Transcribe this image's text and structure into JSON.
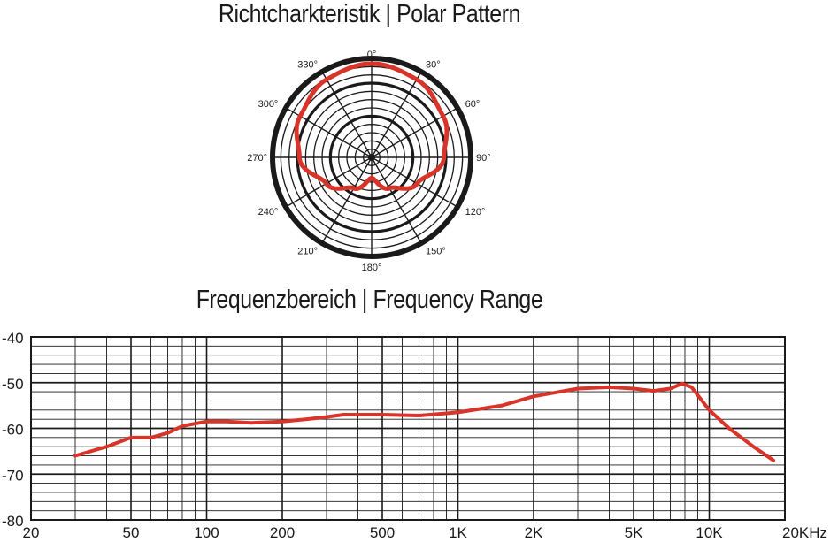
{
  "polar": {
    "title": "Richtcharkteristik | Polar Pattern",
    "angle_labels": [
      "0°",
      "30°",
      "60°",
      "90°",
      "120°",
      "150°",
      "180°",
      "210°",
      "240°",
      "270°",
      "300°",
      "330°"
    ]
  },
  "frequency": {
    "title": "Frequenzbereich | Frequency Range"
  },
  "colors": {
    "curve": "#d8342a",
    "grid": "#1a1a1a"
  },
  "chart_data": [
    {
      "type": "polar",
      "title": "Richtcharkteristik | Polar Pattern",
      "pattern": "cardioid",
      "angles_deg": [
        0,
        30,
        60,
        90,
        120,
        150,
        180,
        210,
        240,
        270,
        300,
        330
      ],
      "angle_labels": [
        "0°",
        "30°",
        "60°",
        "90°",
        "120°",
        "150°",
        "180°",
        "210°",
        "240°",
        "270°",
        "300°",
        "330°"
      ],
      "ring_count": 12,
      "response": [
        {
          "angle": 0,
          "r": 1.0
        },
        {
          "angle": 30,
          "r": 0.96
        },
        {
          "angle": 60,
          "r": 0.88
        },
        {
          "angle": 90,
          "r": 0.77
        },
        {
          "angle": 120,
          "r": 0.56
        },
        {
          "angle": 150,
          "r": 0.38
        },
        {
          "angle": 180,
          "r": 0.22
        },
        {
          "angle": 210,
          "r": 0.38
        },
        {
          "angle": 240,
          "r": 0.56
        },
        {
          "angle": 270,
          "r": 0.77
        },
        {
          "angle": 300,
          "r": 0.88
        },
        {
          "angle": 330,
          "r": 0.96
        }
      ]
    },
    {
      "type": "line",
      "title": "Frequenzbereich | Frequency Range",
      "xscale": "log",
      "xlim": [
        20,
        20000
      ],
      "ylim": [
        -80,
        -40
      ],
      "x_tick_values": [
        20,
        50,
        100,
        200,
        500,
        1000,
        2000,
        5000,
        10000,
        20000
      ],
      "x_tick_labels": [
        "20",
        "50",
        "100",
        "200",
        "500",
        "1K",
        "2K",
        "5K",
        "10K",
        "20KHz"
      ],
      "y_tick_values": [
        -40,
        -50,
        -60,
        -70,
        -80
      ],
      "y_tick_labels": [
        "-40",
        "-50",
        "-60",
        "-70",
        "-80"
      ],
      "grid": true,
      "series": [
        {
          "x": [
            30,
            40,
            50,
            60,
            70,
            80,
            100,
            120,
            150,
            200,
            250,
            300,
            350,
            500,
            700,
            1000,
            1500,
            2000,
            3000,
            4000,
            5000,
            6000,
            7000,
            7800,
            8500,
            10000,
            12000,
            15000,
            18000
          ],
          "y": [
            -66,
            -64,
            -62,
            -62,
            -61,
            -59.5,
            -58.5,
            -58.5,
            -58.8,
            -58.5,
            -58,
            -57.5,
            -57,
            -57,
            -57.2,
            -56.5,
            -55,
            -53,
            -51.3,
            -51,
            -51.3,
            -51.8,
            -51.3,
            -50.2,
            -51,
            -56,
            -60,
            -64,
            -67
          ]
        }
      ]
    }
  ]
}
